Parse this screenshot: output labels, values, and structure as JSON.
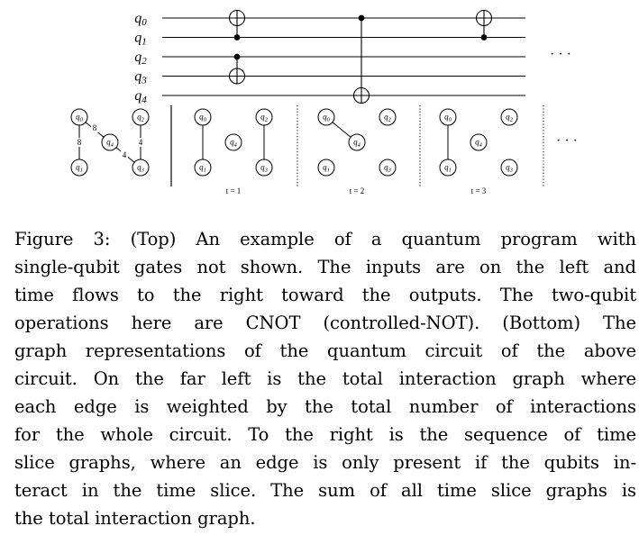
{
  "circuit": {
    "qubits": [
      "q0",
      "q1",
      "q2",
      "q3",
      "q4"
    ],
    "gates": [
      {
        "type": "CNOT",
        "control": "q1",
        "target": "q0",
        "time": 1
      },
      {
        "type": "CNOT",
        "control": "q2",
        "target": "q3",
        "time": 1
      },
      {
        "type": "CNOT",
        "control": "q0",
        "target": "q4",
        "time": 2
      },
      {
        "type": "CNOT",
        "control": "q1",
        "target": "q0",
        "time": 3
      }
    ],
    "ellipsis": "· · ·"
  },
  "graphs": {
    "total": {
      "edges": [
        {
          "from": "q0",
          "to": "q1",
          "weight": "8"
        },
        {
          "from": "q0",
          "to": "q4",
          "weight": "8"
        },
        {
          "from": "q2",
          "to": "q3",
          "weight": "4"
        },
        {
          "from": "q4",
          "to": "q3",
          "weight": "4"
        }
      ]
    },
    "slices": [
      {
        "label": "t = 1",
        "edges": [
          [
            "q0",
            "q1"
          ],
          [
            "q2",
            "q3"
          ]
        ]
      },
      {
        "label": "t = 2",
        "edges": [
          [
            "q0",
            "q4"
          ]
        ]
      },
      {
        "label": "t = 3",
        "edges": [
          [
            "q0",
            "q1"
          ]
        ]
      }
    ],
    "ellipsis": "· · ·"
  },
  "caption": {
    "lines": [
      "Figure 3: (Top) An example of a quantum program with",
      "single-qubit gates not shown. The inputs are on the left and",
      "time flows to the right toward the outputs. The two-qubit",
      "operations here are CNOT (controlled-NOT). (Bottom) The",
      "graph representations of the quantum circuit of the above",
      "circuit. On the far left is the total interaction graph where",
      "each edge is weighted by the total number of interactions",
      "for the whole circuit. To the right is the sequence of time",
      "slice graphs, where an edge is only present if the qubits in-",
      "teract in the time slice. The sum of all time slice graphs is",
      "the total interaction graph."
    ]
  }
}
